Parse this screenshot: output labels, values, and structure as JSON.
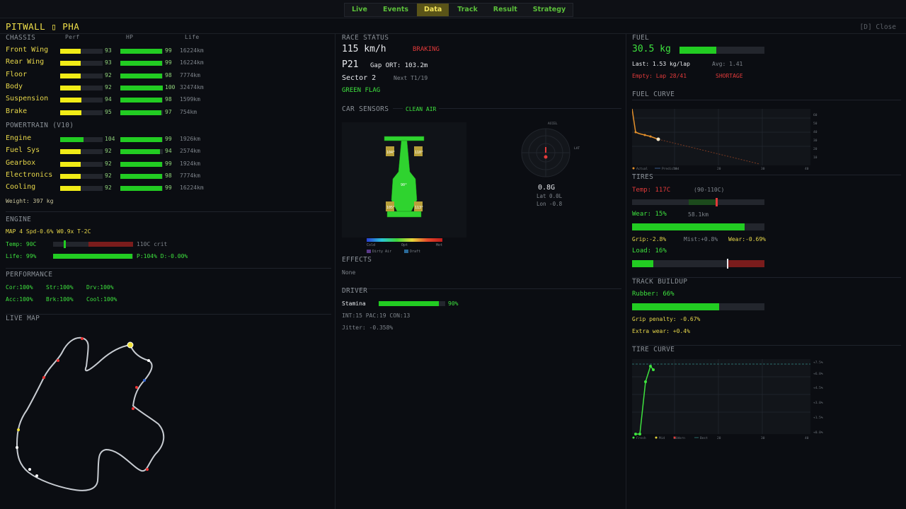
{
  "nav": {
    "tabs": [
      "Live",
      "Events",
      "Data",
      "Track",
      "Result",
      "Strategy"
    ],
    "active": "Data"
  },
  "header": {
    "title": "PITWALL ▯ PHA",
    "close": "[D] Close"
  },
  "chassis": {
    "title": "CHASSIS",
    "col_perf": "Perf",
    "col_hp": "HP",
    "col_life": "Life",
    "rows": [
      {
        "name": "Front Wing",
        "perf": "93",
        "hp": "99",
        "life": "16224km"
      },
      {
        "name": "Rear Wing",
        "perf": "93",
        "hp": "99",
        "life": "16224km"
      },
      {
        "name": "Floor",
        "perf": "92",
        "hp": "98",
        "life": "7774km"
      },
      {
        "name": "Body",
        "perf": "92",
        "hp": "100",
        "life": "32474km"
      },
      {
        "name": "Suspension",
        "perf": "94",
        "hp": "98",
        "life": "1599km"
      },
      {
        "name": "Brake",
        "perf": "95",
        "hp": "97",
        "life": "754km"
      }
    ]
  },
  "powertrain": {
    "title": "POWERTRAIN (V10)",
    "rows": [
      {
        "name": "Engine",
        "perf": "104",
        "hp": "99",
        "life": "1926km"
      },
      {
        "name": "Fuel Sys",
        "perf": "92",
        "hp": "94",
        "life": "2574km"
      },
      {
        "name": "Gearbox",
        "perf": "92",
        "hp": "99",
        "life": "1924km"
      },
      {
        "name": "Electronics",
        "perf": "92",
        "hp": "98",
        "life": "7774km"
      },
      {
        "name": "Cooling",
        "perf": "92",
        "hp": "99",
        "life": "16224km"
      }
    ],
    "weight": "Weight: 397 kg"
  },
  "engine": {
    "title": "ENGINE",
    "mode_line": "MAP 4  Spd-0.6%  W0.9x  T-2C",
    "temp": "Temp: 90C",
    "temp_crit": "110C crit",
    "life": "Life: 99%",
    "life_stats": "P:104% D:-0.00%",
    "temp_level": 0.3,
    "life_level": 0.99
  },
  "performance": {
    "title": "PERFORMANCE",
    "row1": [
      "Cor:100%",
      "Str:100%",
      "Drv:100%"
    ],
    "row2": [
      "Acc:100%",
      "Brk:100%",
      "Cool:100%"
    ]
  },
  "live_map": {
    "title": "LIVE MAP"
  },
  "race_status": {
    "title": "RACE STATUS",
    "speed": "115 km/h",
    "state": "BRAKING",
    "position": "P21",
    "gap": "Gap ORT: 103.2m",
    "sector": "Sector 2",
    "next": "Next T1/19",
    "flag": "GREEN FLAG"
  },
  "sensors": {
    "title": "CAR SENSORS",
    "air": "CLEAN AIR",
    "tire_fl": "104°",
    "tire_fr": "110°",
    "tire_rl": "105°",
    "tire_rr": "113°",
    "engine_temp": "90°",
    "scale_cold": "Cold",
    "scale_opt": "Opt",
    "scale_hot": "Hot",
    "legend_dirty": "Dirty Air",
    "legend_draft": "Draft",
    "g_top": "ACCEL",
    "g_right": "LAT",
    "g_total": "0.8G",
    "lat": "Lat 0.0L",
    "lon": "Lon -0.8"
  },
  "effects": {
    "title": "EFFECTS",
    "value": "None"
  },
  "driver": {
    "title": "DRIVER",
    "stamina_label": "Stamina",
    "stamina_pct": "90%",
    "stamina_level": 0.9,
    "stats": "INT:15 PAC:19 CON:13",
    "jitter": "Jitter: -0.358%"
  },
  "fuel": {
    "title": "FUEL",
    "amount": "30.5 kg",
    "fill_level": 0.43,
    "last": "Last: 1.53 kg/lap",
    "avg": "Avg: 1.41",
    "empty": "Empty: Lap 28/41",
    "shortage": "SHORTAGE"
  },
  "fuel_curve": {
    "title": "FUEL CURVE",
    "legend": [
      "Actual",
      "Predicted"
    ],
    "x_ticks": [
      "10",
      "20",
      "30",
      "40"
    ],
    "y_ticks": [
      "60",
      "50",
      "40",
      "30",
      "20",
      "10"
    ]
  },
  "tires": {
    "title": "TIRES",
    "temp": "Temp: 117C",
    "temp_range": "(90-110C)",
    "wear": "Wear: 15%",
    "wear_km": "58.1km",
    "wear_level": 0.85,
    "grip": "Grip:-2.8%",
    "mist": "Mist:+0.8%",
    "wear_rate": "Wear:-0.69%",
    "load": "Load: 16%",
    "load_level": 0.16
  },
  "track_buildup": {
    "title": "TRACK BUILDUP",
    "rubber": "Rubber: 66%",
    "rubber_level": 0.66,
    "grip_penalty": "Grip penalty: -0.67%",
    "extra_wear": "Extra wear: +0.4%"
  },
  "tire_curve": {
    "title": "TIRE CURVE",
    "legend": [
      "Fresh",
      "Mid",
      "Worn",
      "Best"
    ],
    "x_ticks": [
      "10",
      "20",
      "30",
      "40"
    ],
    "y_ticks": [
      "+0.0%",
      "+1.5%",
      "+3.0%",
      "+4.5%",
      "+6.0%",
      "+7.5%"
    ]
  },
  "colors": {
    "accent": "#f0e04a",
    "good": "#22cc22",
    "warn": "#e23a3a",
    "bg": "#0b0d12"
  }
}
